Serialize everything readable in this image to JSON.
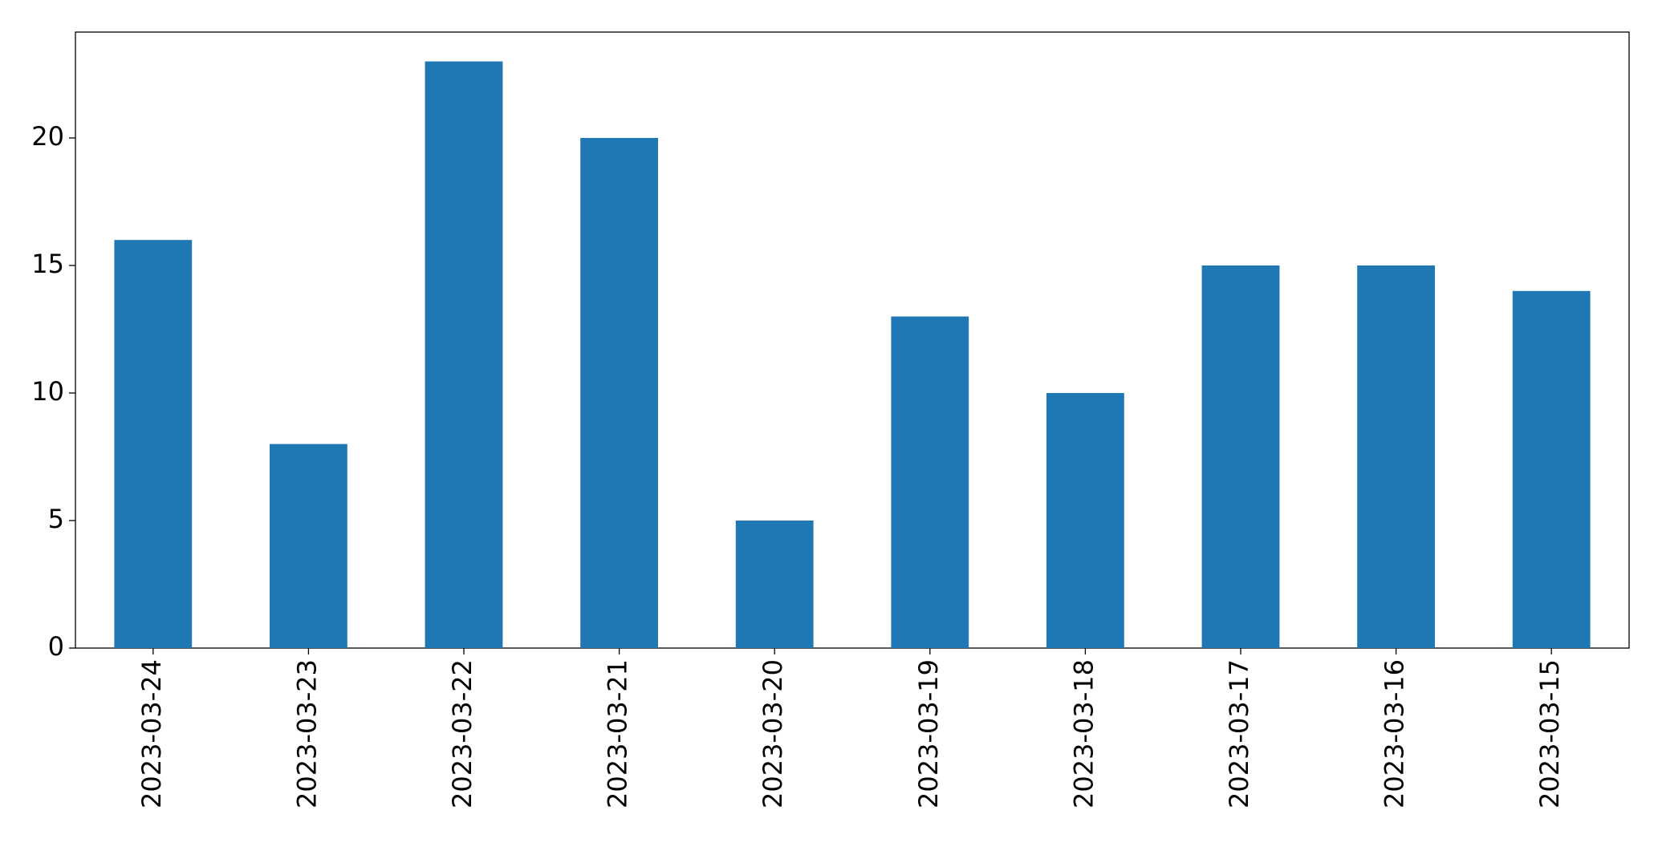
{
  "chart_data": {
    "type": "bar",
    "categories": [
      "2023-03-24",
      "2023-03-23",
      "2023-03-22",
      "2023-03-21",
      "2023-03-20",
      "2023-03-19",
      "2023-03-18",
      "2023-03-17",
      "2023-03-16",
      "2023-03-15"
    ],
    "values": [
      16,
      8,
      23,
      20,
      5,
      13,
      10,
      15,
      15,
      14
    ],
    "color": "#1f77b4",
    "ylim": [
      0,
      24.15
    ],
    "yticks": [
      0,
      5,
      10,
      15,
      20
    ],
    "grid": false
  }
}
